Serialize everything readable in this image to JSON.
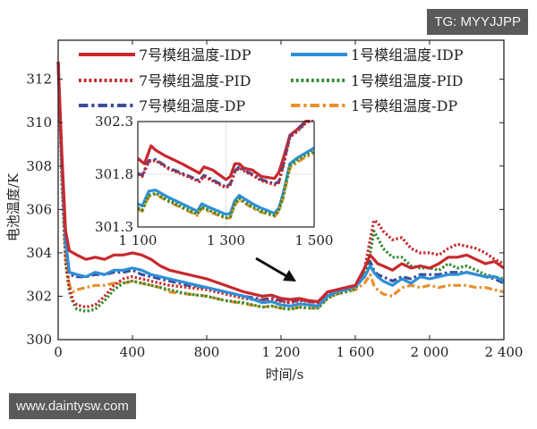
{
  "watermarks": {
    "top_right": "TG: MYYJJPP",
    "bottom_left": "www.daintysw.com"
  },
  "chart_data": {
    "type": "line",
    "title": "",
    "xlabel": "时间/s",
    "ylabel": "电池温度/K",
    "xlim": [
      0,
      2400
    ],
    "ylim": [
      300,
      313.8
    ],
    "xticks": [
      0,
      400,
      800,
      1200,
      1600,
      2000,
      2400
    ],
    "xtick_labels": [
      "0",
      "400",
      "800",
      "1 200",
      "1 600",
      "2 000",
      "2 400"
    ],
    "yticks": [
      300,
      302,
      304,
      306,
      308,
      310,
      312
    ],
    "ytick_labels": [
      "300",
      "302",
      "304",
      "306",
      "308",
      "310",
      "312"
    ],
    "grid": false,
    "legend_position": "top (inside, 2 columns)",
    "annotation": "arrow pointing from inset to region ~1300 s",
    "series": [
      {
        "name": "7号模组温度-IDP",
        "color": "#c8282d",
        "style": "solid",
        "x": [
          0,
          20,
          40,
          60,
          100,
          150,
          200,
          250,
          300,
          350,
          400,
          450,
          500,
          550,
          600,
          700,
          800,
          900,
          1000,
          1100,
          1150,
          1200,
          1250,
          1300,
          1350,
          1400,
          1450,
          1500,
          1550,
          1600,
          1650,
          1680,
          1700,
          1720,
          1750,
          1800,
          1850,
          1900,
          1950,
          2000,
          2050,
          2100,
          2150,
          2200,
          2250,
          2300,
          2350,
          2400
        ],
        "y": [
          312.8,
          308.5,
          305.0,
          304.1,
          303.9,
          303.7,
          303.8,
          303.7,
          303.9,
          303.9,
          304.0,
          303.9,
          303.7,
          303.4,
          303.2,
          303.0,
          302.8,
          302.5,
          302.2,
          302.0,
          302.05,
          301.9,
          301.85,
          301.9,
          301.8,
          301.75,
          302.2,
          302.3,
          302.4,
          302.5,
          303.3,
          303.9,
          303.7,
          303.5,
          303.4,
          303.2,
          303.5,
          303.3,
          303.4,
          303.3,
          303.5,
          303.8,
          303.8,
          303.9,
          303.7,
          303.5,
          303.6,
          303.3
        ]
      },
      {
        "name": "1号模组温度-IDP",
        "color": "#2e8fd6",
        "style": "solid",
        "x": [
          0,
          20,
          40,
          60,
          100,
          150,
          200,
          250,
          300,
          350,
          400,
          450,
          500,
          550,
          600,
          700,
          800,
          900,
          1000,
          1100,
          1150,
          1200,
          1250,
          1300,
          1350,
          1400,
          1450,
          1500,
          1550,
          1600,
          1650,
          1680,
          1700,
          1720,
          1750,
          1800,
          1850,
          1900,
          1950,
          2000,
          2050,
          2100,
          2150,
          2200,
          2250,
          2300,
          2350,
          2400
        ],
        "y": [
          312.8,
          308.0,
          304.5,
          303.1,
          303.0,
          302.9,
          303.1,
          303.0,
          303.2,
          303.2,
          303.3,
          303.2,
          303.0,
          302.9,
          302.8,
          302.6,
          302.4,
          302.2,
          302.0,
          301.7,
          301.75,
          301.6,
          301.55,
          301.65,
          301.6,
          301.55,
          302.0,
          302.2,
          302.3,
          302.45,
          302.9,
          303.4,
          303.1,
          302.9,
          302.7,
          302.5,
          302.8,
          302.6,
          302.9,
          302.8,
          302.9,
          303.0,
          303.0,
          303.1,
          303.0,
          302.9,
          302.9,
          302.7
        ]
      },
      {
        "name": "7号模组温度-PID",
        "color": "#c8282d",
        "style": "dotted",
        "x": [
          0,
          20,
          40,
          60,
          80,
          100,
          150,
          200,
          250,
          300,
          350,
          400,
          450,
          500,
          550,
          600,
          700,
          800,
          900,
          1000,
          1100,
          1150,
          1200,
          1250,
          1300,
          1350,
          1400,
          1450,
          1500,
          1550,
          1600,
          1650,
          1680,
          1700,
          1720,
          1750,
          1800,
          1850,
          1900,
          1950,
          2000,
          2050,
          2100,
          2150,
          2200,
          2250,
          2300,
          2350,
          2400
        ],
        "y": [
          312.8,
          307.5,
          303.8,
          302.4,
          301.8,
          301.6,
          301.5,
          301.6,
          302.0,
          302.5,
          302.8,
          302.9,
          302.8,
          302.7,
          302.6,
          302.5,
          302.4,
          302.3,
          302.1,
          301.9,
          301.8,
          301.85,
          301.75,
          301.7,
          301.8,
          301.75,
          301.7,
          302.1,
          302.3,
          302.4,
          302.5,
          303.3,
          304.6,
          305.5,
          305.4,
          305.0,
          304.6,
          304.7,
          304.2,
          304.0,
          304.0,
          303.9,
          304.2,
          304.4,
          304.3,
          304.2,
          304.0,
          303.7,
          303.5
        ]
      },
      {
        "name": "1号模组温度-PID",
        "color": "#2e8b2e",
        "style": "dotted",
        "x": [
          0,
          20,
          40,
          60,
          80,
          100,
          150,
          200,
          250,
          300,
          350,
          400,
          450,
          500,
          550,
          600,
          700,
          800,
          900,
          1000,
          1100,
          1150,
          1200,
          1250,
          1300,
          1350,
          1400,
          1450,
          1500,
          1550,
          1600,
          1650,
          1680,
          1700,
          1720,
          1750,
          1800,
          1850,
          1900,
          1950,
          2000,
          2050,
          2100,
          2150,
          2200,
          2250,
          2300,
          2350,
          2400
        ],
        "y": [
          312.8,
          307.2,
          303.5,
          302.2,
          301.7,
          301.4,
          301.3,
          301.4,
          301.8,
          302.3,
          302.6,
          302.7,
          302.6,
          302.5,
          302.4,
          302.3,
          302.1,
          302.0,
          301.8,
          301.7,
          301.5,
          301.55,
          301.45,
          301.4,
          301.5,
          301.45,
          301.45,
          301.9,
          302.1,
          302.2,
          302.35,
          303.0,
          304.0,
          305.0,
          304.7,
          304.2,
          303.8,
          303.8,
          303.4,
          303.3,
          303.3,
          303.2,
          303.5,
          303.3,
          303.4,
          303.2,
          303.0,
          302.9,
          302.8
        ]
      },
      {
        "name": "7号模组温度-DP",
        "color": "#3c4e9a",
        "style": "dashdot",
        "x": [
          0,
          20,
          40,
          60,
          100,
          150,
          200,
          250,
          300,
          350,
          400,
          450,
          500,
          550,
          600,
          700,
          800,
          900,
          1000,
          1100,
          1150,
          1200,
          1250,
          1300,
          1350,
          1400,
          1450,
          1500,
          1550,
          1600,
          1650,
          1680,
          1700,
          1720,
          1750,
          1800,
          1850,
          1900,
          1950,
          2000,
          2050,
          2100,
          2150,
          2200,
          2250,
          2300,
          2350,
          2400
        ],
        "y": [
          312.8,
          308.0,
          304.6,
          303.0,
          302.9,
          302.9,
          303.0,
          303.0,
          303.1,
          303.1,
          303.2,
          303.0,
          302.9,
          302.8,
          302.7,
          302.5,
          302.4,
          302.2,
          302.0,
          301.85,
          301.9,
          301.8,
          301.7,
          301.85,
          301.75,
          301.7,
          302.15,
          302.3,
          302.35,
          302.5,
          303.2,
          303.6,
          303.2,
          303.0,
          302.9,
          302.7,
          302.9,
          302.8,
          303.0,
          303.0,
          303.0,
          303.1,
          303.1,
          303.1,
          303.0,
          302.9,
          302.8,
          302.6
        ]
      },
      {
        "name": "1号模组温度-DP",
        "color": "#e8902a",
        "style": "dashdot",
        "x": [
          0,
          20,
          40,
          60,
          80,
          100,
          150,
          200,
          250,
          300,
          350,
          400,
          450,
          500,
          550,
          600,
          700,
          800,
          900,
          1000,
          1100,
          1150,
          1200,
          1250,
          1300,
          1350,
          1400,
          1450,
          1500,
          1550,
          1600,
          1650,
          1680,
          1700,
          1720,
          1750,
          1800,
          1850,
          1900,
          1950,
          2000,
          2050,
          2100,
          2150,
          2200,
          2250,
          2300,
          2350,
          2400
        ],
        "y": [
          312.8,
          307.5,
          303.8,
          302.5,
          302.2,
          302.3,
          302.4,
          302.5,
          302.5,
          302.6,
          302.6,
          302.7,
          302.6,
          302.5,
          302.4,
          302.2,
          302.1,
          302.0,
          301.8,
          301.65,
          301.5,
          301.55,
          301.45,
          301.4,
          301.5,
          301.45,
          301.45,
          301.9,
          302.1,
          302.2,
          302.3,
          302.6,
          303.0,
          302.5,
          302.3,
          302.1,
          302.0,
          302.4,
          302.5,
          302.4,
          302.5,
          302.4,
          302.5,
          302.5,
          302.5,
          302.4,
          302.4,
          302.3,
          302.2
        ]
      }
    ],
    "inset": {
      "xlim": [
        1100,
        1500
      ],
      "ylim": [
        301.3,
        302.3
      ],
      "xticks": [
        1100,
        1300,
        1500
      ],
      "xtick_labels": [
        "1 100",
        "1 300",
        "1 500"
      ],
      "yticks": [
        301.3,
        301.8,
        302.3
      ],
      "ytick_labels": [
        "301.3",
        "301.8",
        "302.3"
      ],
      "grid": true,
      "series": [
        {
          "name": "7号模组温度-IDP",
          "x": [
            1100,
            1115,
            1130,
            1140,
            1160,
            1200,
            1240,
            1250,
            1270,
            1300,
            1310,
            1320,
            1330,
            1340,
            1360,
            1380,
            1410,
            1420,
            1430,
            1445,
            1460,
            1480,
            1490
          ],
          "y": [
            301.95,
            301.9,
            302.07,
            302.03,
            301.98,
            301.9,
            301.81,
            301.87,
            301.84,
            301.75,
            301.78,
            301.9,
            301.9,
            301.86,
            301.84,
            301.78,
            301.76,
            301.82,
            301.95,
            302.17,
            302.22,
            302.3,
            302.32
          ]
        },
        {
          "name": "1号模组温度-IDP",
          "x": [
            1100,
            1110,
            1125,
            1140,
            1170,
            1200,
            1235,
            1245,
            1260,
            1300,
            1310,
            1320,
            1330,
            1345,
            1360,
            1380,
            1410,
            1420,
            1430,
            1445,
            1460,
            1480,
            1500
          ],
          "y": [
            301.52,
            301.5,
            301.64,
            301.65,
            301.58,
            301.52,
            301.45,
            301.52,
            301.49,
            301.42,
            301.43,
            301.55,
            301.6,
            301.56,
            301.52,
            301.48,
            301.43,
            301.48,
            301.62,
            301.9,
            301.95,
            302.0,
            302.05
          ]
        },
        {
          "name": "7号模组温度-PID",
          "x": [
            1100,
            1110,
            1125,
            1140,
            1170,
            1200,
            1240,
            1250,
            1300,
            1310,
            1320,
            1330,
            1345,
            1360,
            1380,
            1410,
            1420,
            1430,
            1445,
            1460,
            1480,
            1500
          ],
          "y": [
            301.8,
            301.78,
            301.92,
            301.93,
            301.85,
            301.8,
            301.73,
            301.78,
            301.67,
            301.7,
            301.82,
            301.86,
            301.82,
            301.79,
            301.74,
            301.7,
            301.72,
            301.88,
            302.15,
            302.2,
            302.28,
            302.33
          ]
        },
        {
          "name": "1号模组温度-PID",
          "x": [
            1100,
            1110,
            1125,
            1140,
            1170,
            1200,
            1235,
            1245,
            1260,
            1300,
            1310,
            1320,
            1330,
            1345,
            1360,
            1380,
            1410,
            1420,
            1430,
            1445,
            1460,
            1480,
            1500
          ],
          "y": [
            301.48,
            301.46,
            301.6,
            301.62,
            301.55,
            301.49,
            301.42,
            301.49,
            301.46,
            301.39,
            301.4,
            301.52,
            301.57,
            301.53,
            301.49,
            301.45,
            301.41,
            301.46,
            301.6,
            301.88,
            301.93,
            301.98,
            302.02
          ]
        },
        {
          "name": "7号模组温度-DP",
          "x": [
            1100,
            1110,
            1125,
            1140,
            1170,
            1200,
            1240,
            1250,
            1300,
            1310,
            1320,
            1330,
            1345,
            1360,
            1380,
            1410,
            1420,
            1430,
            1445,
            1460,
            1480,
            1500
          ],
          "y": [
            301.81,
            301.79,
            301.93,
            301.94,
            301.86,
            301.81,
            301.74,
            301.79,
            301.68,
            301.71,
            301.83,
            301.87,
            301.83,
            301.8,
            301.75,
            301.71,
            301.73,
            301.89,
            302.16,
            302.21,
            302.29,
            302.34
          ]
        },
        {
          "name": "1号模组温度-DP",
          "x": [
            1100,
            1110,
            1125,
            1140,
            1170,
            1200,
            1235,
            1245,
            1260,
            1300,
            1310,
            1320,
            1330,
            1345,
            1360,
            1380,
            1410,
            1420,
            1430,
            1445,
            1460,
            1480,
            1500
          ],
          "y": [
            301.47,
            301.45,
            301.59,
            301.61,
            301.54,
            301.48,
            301.41,
            301.48,
            301.45,
            301.38,
            301.39,
            301.51,
            301.56,
            301.52,
            301.48,
            301.44,
            301.4,
            301.45,
            301.58,
            301.86,
            301.91,
            301.96,
            302.0
          ]
        }
      ]
    }
  }
}
